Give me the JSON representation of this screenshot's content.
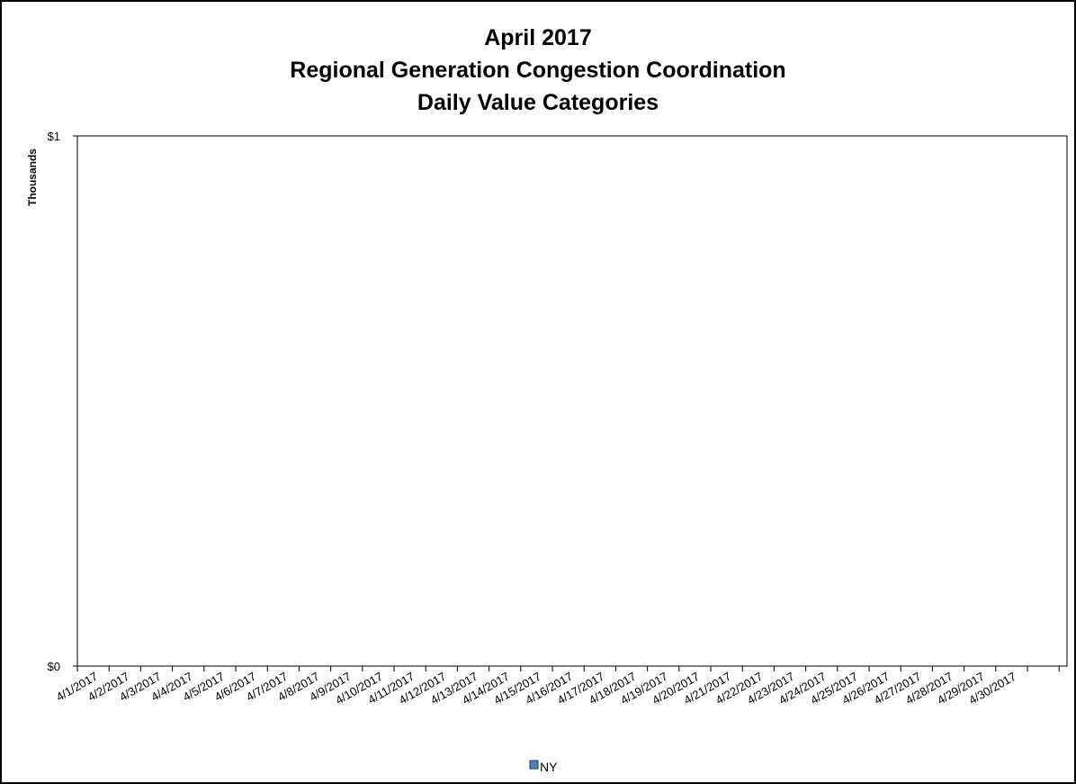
{
  "chart_data": {
    "type": "bar",
    "title_lines": [
      "April 2017",
      "Regional Generation Congestion Coordination",
      "Daily Value Categories"
    ],
    "ylabel": "Thousands",
    "xlabel": "",
    "yticks": [
      "$0",
      "$1"
    ],
    "ylim": [
      0,
      1
    ],
    "categories": [
      "4/1/2017",
      "4/2/2017",
      "4/3/2017",
      "4/4/2017",
      "4/5/2017",
      "4/6/2017",
      "4/7/2017",
      "4/8/2017",
      "4/9/2017",
      "4/10/2017",
      "4/11/2017",
      "4/12/2017",
      "4/13/2017",
      "4/14/2017",
      "4/15/2017",
      "4/16/2017",
      "4/17/2017",
      "4/18/2017",
      "4/19/2017",
      "4/20/2017",
      "4/21/2017",
      "4/22/2017",
      "4/23/2017",
      "4/24/2017",
      "4/25/2017",
      "4/26/2017",
      "4/27/2017",
      "4/28/2017",
      "4/29/2017",
      "4/30/2017"
    ],
    "series": [
      {
        "name": "NY",
        "color": "#4f81bd",
        "values": [
          0,
          0,
          0,
          0,
          0,
          0,
          0,
          0,
          0,
          0,
          0,
          0,
          0,
          0,
          0,
          0,
          0,
          0,
          0,
          0,
          0,
          0,
          0,
          0,
          0,
          0,
          0,
          0,
          0,
          0
        ]
      }
    ],
    "grid": false,
    "legend_position": "bottom"
  }
}
